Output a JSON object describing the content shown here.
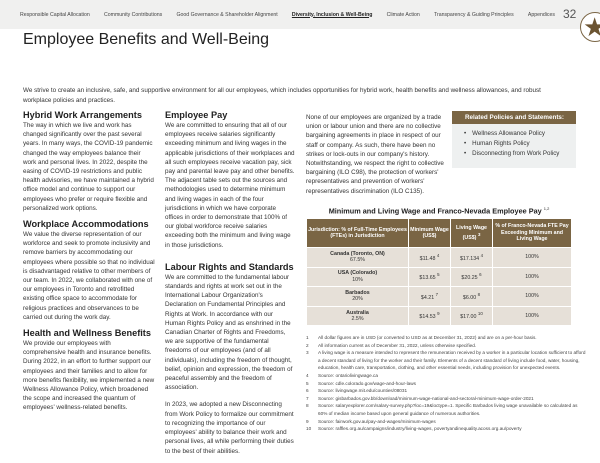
{
  "nav": {
    "items": [
      "Responsible Capital Allocation",
      "Community Contributions",
      "Good Governance & Shareholder Alignment",
      "Diversity, Inclusion & Well-Being",
      "Climate Action",
      "Transparency & Guiding Principles",
      "Appendices"
    ],
    "active": "Diversity, Inclusion & Well-Being",
    "page_number": "32"
  },
  "title": "Employee Benefits and Well-Being",
  "intro": "We strive to create an inclusive, safe, and supportive environment for all our employees, which includes opportunities for hybrid work, health benefits and wellness allowances, and robust workplace policies and practices.",
  "sections": {
    "hybrid": {
      "heading": "Hybrid Work Arrangements",
      "body": "The way in which we live and work has changed significantly over the past several years. In many ways, the COVID-19 pandemic changed the way employees balance their work and personal lives. In 2022, despite the easing of COVID-19 restrictions and public health advisories, we have maintained a hybrid office model and continue to support our employees who prefer or require flexible and personalized work options."
    },
    "accommodations": {
      "heading": "Workplace Accommodations",
      "body": "We value the diverse representation of our workforce and seek to promote inclusivity and remove barriers by accommodating our employees where possible so that no individual is disadvantaged relative to other members of our team. In 2022, we collaborated with one of our employees in Toronto and retrofitted existing office space to accommodate for religious practices and observances to be carried out during the work day."
    },
    "health": {
      "heading": "Health and Wellness Benefits",
      "body": "We provide our employees with comprehensive health and insurance benefits. During 2022, in an effort to further support our employees and their families and to allow for more benefits flexibility, we implemented a new Wellness Allowance Policy, which broadened the scope and increased the quantum of employees' wellness-related benefits."
    },
    "pay": {
      "heading": "Employee Pay",
      "body": "We are committed to ensuring that all of our employees receive salaries significantly exceeding minimum and living wages in the applicable jurisdictions of their workplaces and all such employees receive vacation pay, sick pay and parental leave pay and other benefits. The adjacent table sets out the sources and methodologies used to determine minimum and living wages in each of the four jurisdictions in which we have corporate offices in order to demonstrate that 100% of our global workforce receive salaries exceeding both the minimum and living wage in those jurisdictions."
    },
    "labour": {
      "heading": "Labour Rights and Standards",
      "body": "We are committed to the fundamental labour standards and rights at work set out in the International Labour Organization's Declaration on Fundamental Principles and Rights at Work. In accordance with our Human Rights Policy and as enshrined in the Canadian Charter of Rights and Freedoms, we are supportive of the fundamental freedoms of our employees (and of all individuals), including the freedom of thought, belief, opinion and expression, the freedom of peaceful assembly and the freedom of association.",
      "body2": "In 2023, we adopted a new Disconnecting from Work Policy to formalize our commitment to recognizing the importance of our employees' ability to balance their work and personal lives, all while performing their duties to the best of their abilities."
    },
    "unions": {
      "body": "None of our employees are organized by a trade union or labour union and there are no collective bargaining agreements in place in respect of our staff or company. As such, there have been no strikes or lock-outs in our company's history. Notwithstanding, we respect the right to collective bargaining (ILO C98), the protection of workers' representatives and prevention of workers' representatives discrimination (ILO C135)."
    }
  },
  "related": {
    "heading": "Related Policies and Statements:",
    "items": [
      "Wellness Allowance Policy",
      "Human Rights Policy",
      "Disconnecting from Work Policy"
    ]
  },
  "wage_table": {
    "title": "Minimum and Living Wage and Franco-Nevada Employee Pay",
    "title_sup": "1,2",
    "headers": [
      "Jurisdiction: % of Full-Time Employees (FTEs) in Jurisdiction",
      "Minimum Wage (US$)",
      "Living Wage (US$)",
      "% of Franco-Nevada FTE Pay Exceeding Minimum and Living Wage"
    ],
    "living_sup": "3",
    "rows": [
      {
        "jurisdiction": "Canada (Toronto, ON)",
        "pct": "67.5%",
        "min": "$11.48",
        "min_sup": "4",
        "living": "$17.134",
        "living_sup": "4",
        "exceed": "100%"
      },
      {
        "jurisdiction": "USA (Colorado)",
        "pct": "10%",
        "min": "$13.65",
        "min_sup": "5",
        "living": "$20.25",
        "living_sup": "6",
        "exceed": "100%"
      },
      {
        "jurisdiction": "Barbados",
        "pct": "20%",
        "min": "$4.21",
        "min_sup": "7",
        "living": "$6.00",
        "living_sup": "8",
        "exceed": "100%"
      },
      {
        "jurisdiction": "Australia",
        "pct": "2.5%",
        "min": "$14.53",
        "min_sup": "9",
        "living": "$17.00",
        "living_sup": "10",
        "exceed": "100%"
      }
    ]
  },
  "footnotes": [
    {
      "n": "1",
      "text": "All dollar figures are in USD (or converted to USD as at December 31, 2022) and are on a per-hour basis."
    },
    {
      "n": "2",
      "text": "All information current as of December 31, 2022, unless otherwise specified."
    },
    {
      "n": "3",
      "text": "A living wage is a measure intended to represent the remuneration received by a worker in a particular location sufficient to afford a decent standard of living for the worker and their family. Elements of a decent standard of living include food, water, housing, education, health care, transportation, clothing, and other essential needs, including provision for unexpected events."
    },
    {
      "n": "4",
      "text": "Source: ontariolivingwage.ca"
    },
    {
      "n": "5",
      "text": "Source: cdle.colorado.gov/wage-and-hour-laws"
    },
    {
      "n": "6",
      "text": "Source: livingwage.mit.edu/counties/08031"
    },
    {
      "n": "7",
      "text": "Source: gisbarbados.gov.bb/download/minimum-wage-national-and-sectoral-minimum-wage-order-2021"
    },
    {
      "n": "8",
      "text": "Source: salaryexplorer.com/salary-survey.php?loc=19&loctype=1. Specific Barbados living wage unavailable so calculated as 60% of median income based upon general guidance of numerous authorities."
    },
    {
      "n": "9",
      "text": "Source: fairwork.gov.au/pay-and-wages/minimum-wages"
    },
    {
      "n": "10",
      "text": "Source: raffles.org.au/campaigns/industry/living-wages, povertyandinequality.acoss.org.au/poverty"
    }
  ],
  "colors": {
    "accent": "#7a6544",
    "table_row": "#e6e0d8",
    "sidebar_bg": "#eef0f0",
    "nav_bg": "#f0f0ef"
  }
}
